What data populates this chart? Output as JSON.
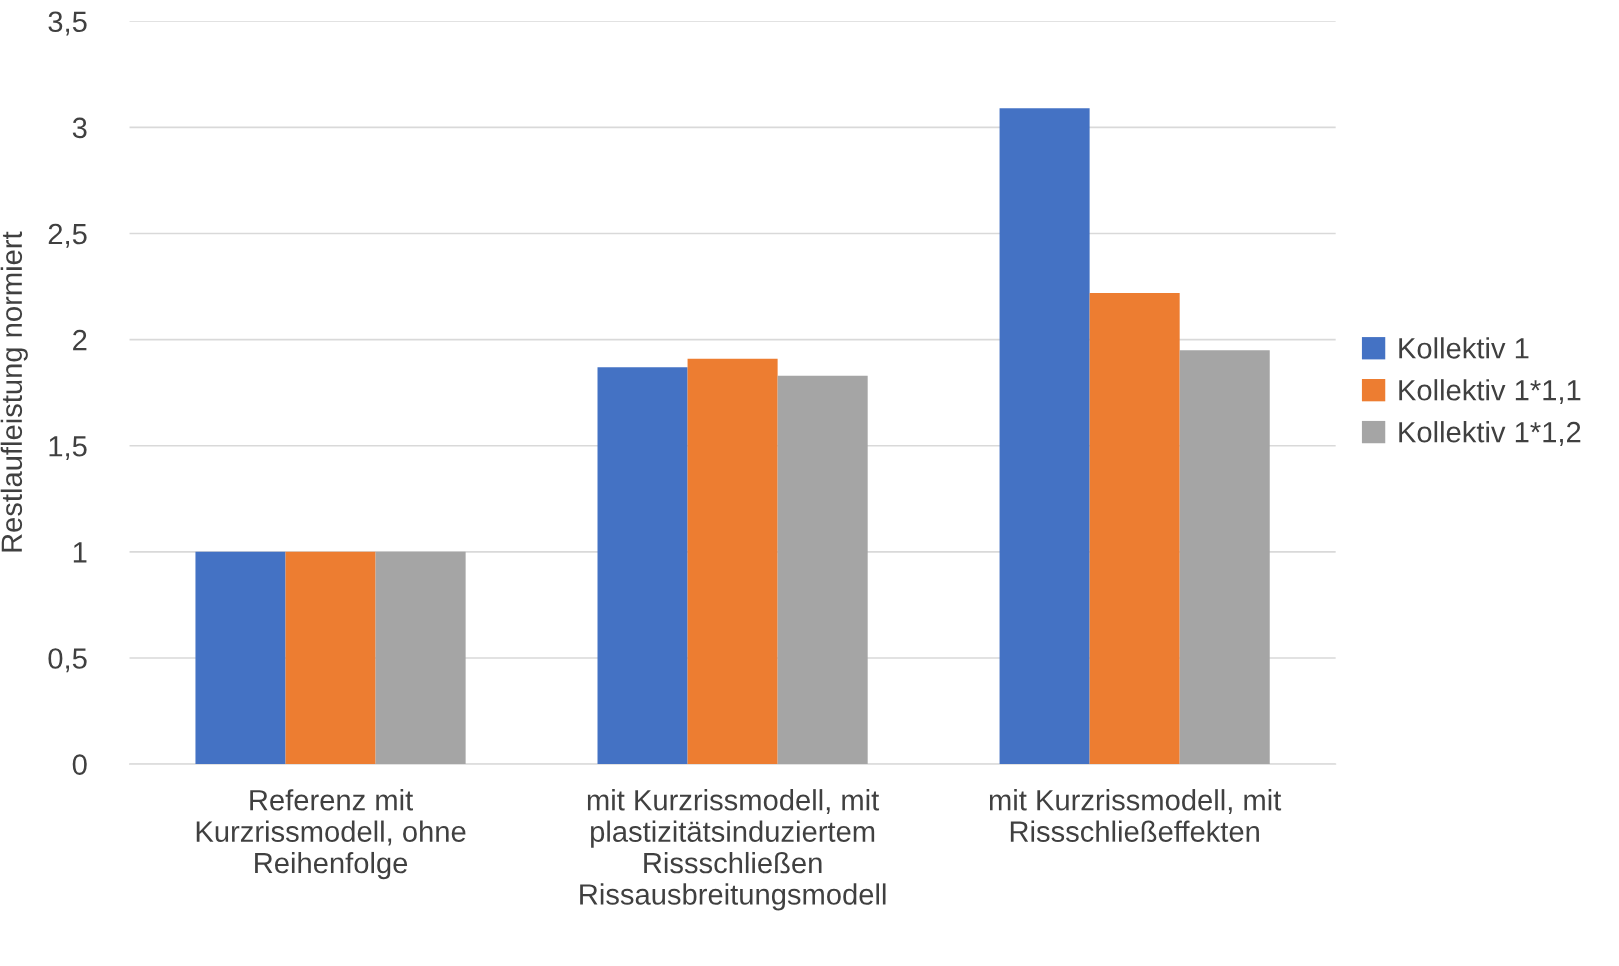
{
  "chart_data": {
    "type": "bar",
    "ylabel": "Restlaufleistung normiert",
    "categories": [
      "Referenz mit\nKurzrissmodell, ohne\nReihenfolge",
      "mit Kurzrissmodell, mit\nplastizitätsinduziertem\nRissschließen\nRissausbreitungsmodell",
      "mit Kurzrissmodell, mit\nRissschließeffekten"
    ],
    "series": [
      {
        "name": "Kollektiv 1",
        "color": "#4472c4",
        "values": [
          1,
          1.87,
          3.09
        ]
      },
      {
        "name": "Kollektiv 1*1,1",
        "color": "#ed7d31",
        "values": [
          1,
          1.91,
          2.22
        ]
      },
      {
        "name": "Kollektiv 1*1,2",
        "color": "#a5a5a5",
        "values": [
          1,
          1.83,
          1.95
        ]
      }
    ],
    "ylim": [
      0,
      3.5
    ],
    "yticks": [
      0,
      {
        "value": 0.5,
        "label": "0,5"
      },
      1,
      {
        "value": 1.5,
        "label": "1,5"
      },
      2,
      {
        "value": 2.5,
        "label": "2,5"
      },
      3,
      {
        "value": 3.5,
        "label": "3,5"
      }
    ],
    "grid": "y",
    "legend": "right"
  }
}
